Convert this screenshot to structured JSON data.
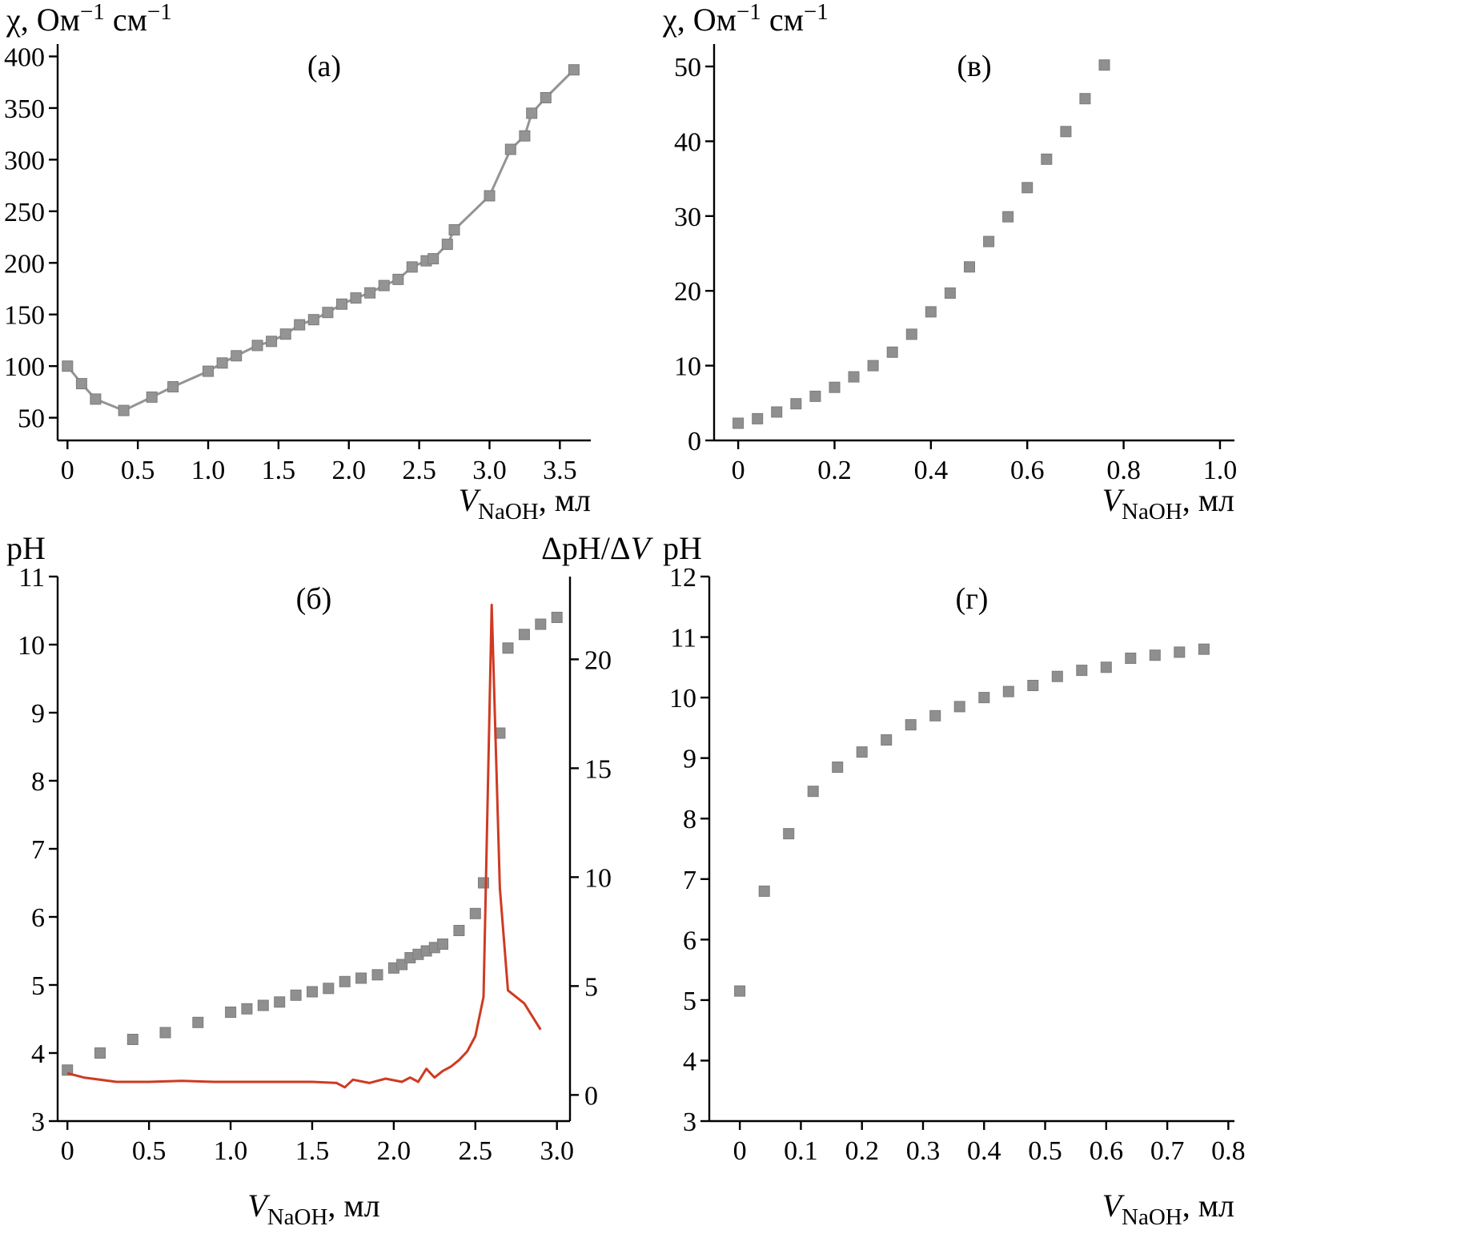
{
  "figure": {
    "background": "#ffffff"
  },
  "chart_data": [
    {
      "id": "a",
      "type": "line",
      "panel_label": "(а)",
      "ylabel_parts": [
        {
          "t": "χ, Ом"
        },
        {
          "t": "−1",
          "sup": true
        },
        {
          "t": " см"
        },
        {
          "t": "−1",
          "sup": true
        }
      ],
      "xlabel_parts": [
        {
          "t": "V",
          "italic": true
        },
        {
          "t": "NaOH",
          "sub": true
        },
        {
          "t": ", мл"
        }
      ],
      "xlabel_align": "end",
      "xlim": [
        -0.07,
        3.72
      ],
      "ylim": [
        28,
        412
      ],
      "x_ticks": {
        "values": [
          0,
          0.5,
          1,
          1.5,
          2,
          2.5,
          3,
          3.5
        ],
        "labels": [
          "0",
          "0.5",
          "1.0",
          "1.5",
          "2.0",
          "2.5",
          "3.0",
          "3.5"
        ]
      },
      "y_ticks": {
        "values": [
          50,
          100,
          150,
          200,
          250,
          300,
          350,
          400
        ],
        "labels": [
          "50",
          "100",
          "150",
          "200",
          "250",
          "300",
          "350",
          "400"
        ]
      },
      "series": [
        {
          "name": "conductivity",
          "axis": "left",
          "marker": true,
          "line": true,
          "color": "#949494",
          "x": [
            0,
            0.1,
            0.2,
            0.4,
            0.6,
            0.75,
            1.0,
            1.1,
            1.2,
            1.35,
            1.45,
            1.55,
            1.65,
            1.75,
            1.85,
            1.95,
            2.05,
            2.15,
            2.25,
            2.35,
            2.45,
            2.55,
            2.6,
            2.7,
            2.75,
            3.0,
            3.15,
            3.25,
            3.3,
            3.4,
            3.6
          ],
          "y": [
            100,
            83,
            68,
            57,
            70,
            80,
            95,
            103,
            110,
            120,
            124,
            131,
            140,
            145,
            152,
            160,
            166,
            171,
            178,
            184,
            196,
            202,
            204,
            218,
            232,
            265,
            310,
            323,
            345,
            360,
            387
          ]
        }
      ]
    },
    {
      "id": "v",
      "type": "scatter",
      "panel_label": "(в)",
      "ylabel_parts": [
        {
          "t": "χ, Ом"
        },
        {
          "t": "−1",
          "sup": true
        },
        {
          "t": " см"
        },
        {
          "t": "−1",
          "sup": true
        }
      ],
      "xlabel_parts": [
        {
          "t": "V",
          "italic": true
        },
        {
          "t": "NaOH",
          "sub": true
        },
        {
          "t": ", мл"
        }
      ],
      "xlabel_align": "end",
      "xlim": [
        -0.05,
        1.03
      ],
      "ylim": [
        0,
        53
      ],
      "x_ticks": {
        "values": [
          0,
          0.2,
          0.4,
          0.6,
          0.8,
          1.0
        ],
        "labels": [
          "0",
          "0.2",
          "0.4",
          "0.6",
          "0.8",
          "1.0"
        ]
      },
      "y_ticks": {
        "values": [
          0,
          10,
          20,
          30,
          40,
          50
        ],
        "labels": [
          "0",
          "10",
          "20",
          "30",
          "40",
          "50"
        ]
      },
      "series": [
        {
          "name": "conductivity",
          "axis": "left",
          "marker": true,
          "line": false,
          "color": "#8f8f8f",
          "x": [
            0,
            0.04,
            0.08,
            0.12,
            0.16,
            0.2,
            0.24,
            0.28,
            0.32,
            0.36,
            0.4,
            0.44,
            0.48,
            0.52,
            0.56,
            0.6,
            0.64,
            0.68,
            0.72,
            0.76
          ],
          "y": [
            2.3,
            2.9,
            3.8,
            4.9,
            5.9,
            7.1,
            8.5,
            10.0,
            11.8,
            14.2,
            17.2,
            19.7,
            23.2,
            26.6,
            29.9,
            33.8,
            37.6,
            41.3,
            45.7,
            50.2
          ]
        }
      ]
    },
    {
      "id": "b",
      "type": "line",
      "panel_label": "(б)",
      "ylabel_parts": [
        {
          "t": "pH"
        }
      ],
      "ylabel_right_parts": [
        {
          "t": "ΔpH/Δ"
        },
        {
          "t": "V",
          "italic": true
        }
      ],
      "xlabel_parts": [
        {
          "t": "V",
          "italic": true
        },
        {
          "t": "NaOH",
          "sub": true
        },
        {
          "t": ", мл"
        }
      ],
      "xlabel_align": "middle",
      "xlim": [
        -0.06,
        3.08
      ],
      "ylim": [
        3,
        11
      ],
      "y2lim": [
        -1.2,
        23.8
      ],
      "x_ticks": {
        "values": [
          0,
          0.5,
          1,
          1.5,
          2,
          2.5,
          3
        ],
        "labels": [
          "0",
          "0.5",
          "1.0",
          "1.5",
          "2.0",
          "2.5",
          "3.0"
        ]
      },
      "y_ticks": {
        "values": [
          3,
          4,
          5,
          6,
          7,
          8,
          9,
          10,
          11
        ],
        "labels": [
          "3",
          "4",
          "5",
          "6",
          "7",
          "8",
          "9",
          "10",
          "11"
        ]
      },
      "y2_ticks": {
        "values": [
          0,
          5,
          10,
          15,
          20
        ],
        "labels": [
          "0",
          "5",
          "10",
          "15",
          "20"
        ]
      },
      "series": [
        {
          "name": "pH",
          "axis": "left",
          "marker": true,
          "line": false,
          "color": "#8f8f8f",
          "x": [
            0,
            0.2,
            0.4,
            0.6,
            0.8,
            1.0,
            1.1,
            1.2,
            1.3,
            1.4,
            1.5,
            1.6,
            1.7,
            1.8,
            1.9,
            2.0,
            2.05,
            2.1,
            2.15,
            2.2,
            2.25,
            2.3,
            2.4,
            2.5,
            2.55,
            2.65,
            2.7,
            2.8,
            2.9,
            3.0
          ],
          "y": [
            3.75,
            4.0,
            4.2,
            4.3,
            4.45,
            4.6,
            4.65,
            4.7,
            4.75,
            4.85,
            4.9,
            4.95,
            5.05,
            5.1,
            5.15,
            5.25,
            5.3,
            5.4,
            5.45,
            5.5,
            5.55,
            5.6,
            5.8,
            6.05,
            6.5,
            8.7,
            9.95,
            10.15,
            10.3,
            10.4
          ]
        },
        {
          "name": "derivative",
          "axis": "right",
          "marker": false,
          "line": true,
          "color": "#cf3a22",
          "x": [
            0,
            0.1,
            0.3,
            0.5,
            0.7,
            0.9,
            1.1,
            1.3,
            1.5,
            1.65,
            1.7,
            1.75,
            1.85,
            1.95,
            2.05,
            2.1,
            2.15,
            2.2,
            2.25,
            2.3,
            2.35,
            2.4,
            2.45,
            2.5,
            2.55,
            2.6,
            2.65,
            2.7,
            2.8,
            2.9
          ],
          "y": [
            1.0,
            0.8,
            0.6,
            0.6,
            0.65,
            0.6,
            0.6,
            0.6,
            0.6,
            0.55,
            0.35,
            0.7,
            0.55,
            0.75,
            0.6,
            0.8,
            0.6,
            1.2,
            0.8,
            1.1,
            1.3,
            1.6,
            2.0,
            2.7,
            4.5,
            22.5,
            9.5,
            4.8,
            4.2,
            3.0
          ]
        }
      ]
    },
    {
      "id": "g",
      "type": "scatter",
      "panel_label": "(г)",
      "ylabel_parts": [
        {
          "t": "pH"
        }
      ],
      "xlabel_parts": [
        {
          "t": "V",
          "italic": true
        },
        {
          "t": "NaOH",
          "sub": true
        },
        {
          "t": ", мл"
        }
      ],
      "xlabel_align": "end",
      "xlim": [
        -0.05,
        0.81
      ],
      "ylim": [
        3,
        12
      ],
      "x_ticks": {
        "values": [
          0,
          0.1,
          0.2,
          0.3,
          0.4,
          0.5,
          0.6,
          0.7,
          0.8
        ],
        "labels": [
          "0",
          "0.1",
          "0.2",
          "0.3",
          "0.4",
          "0.5",
          "0.6",
          "0.7",
          "0.8"
        ]
      },
      "y_ticks": {
        "values": [
          3,
          4,
          5,
          6,
          7,
          8,
          9,
          10,
          11,
          12
        ],
        "labels": [
          "3",
          "4",
          "5",
          "6",
          "7",
          "8",
          "9",
          "10",
          "11",
          "12"
        ]
      },
      "series": [
        {
          "name": "pH",
          "axis": "left",
          "marker": true,
          "line": false,
          "color": "#8f8f8f",
          "x": [
            0,
            0.04,
            0.08,
            0.12,
            0.16,
            0.2,
            0.24,
            0.28,
            0.32,
            0.36,
            0.4,
            0.44,
            0.48,
            0.52,
            0.56,
            0.6,
            0.64,
            0.68,
            0.72,
            0.76
          ],
          "y": [
            5.15,
            6.8,
            7.75,
            8.45,
            8.85,
            9.1,
            9.3,
            9.55,
            9.7,
            9.85,
            10.0,
            10.1,
            10.2,
            10.35,
            10.45,
            10.5,
            10.65,
            10.7,
            10.75,
            10.8
          ]
        }
      ]
    }
  ]
}
